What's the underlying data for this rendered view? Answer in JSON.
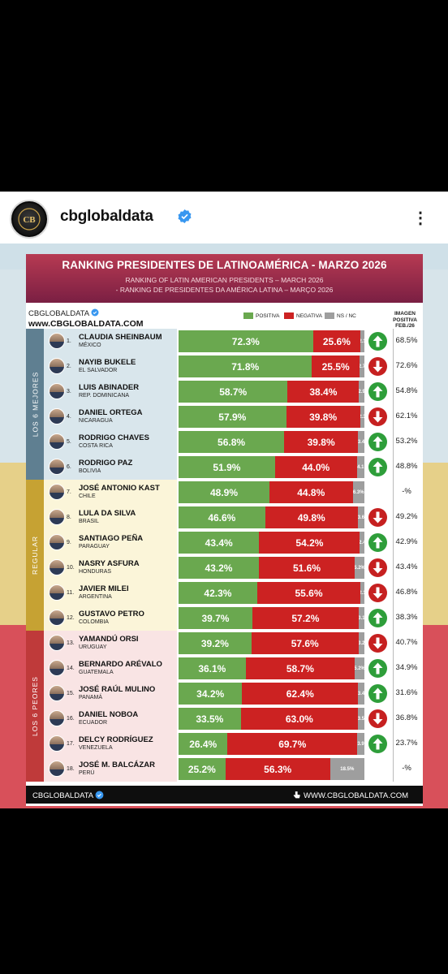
{
  "account": {
    "username": "cbglobaldata",
    "avatar_text": "CB GLOBAL DATA"
  },
  "card": {
    "title": "RANKING PRESIDENTES DE LATINOAMÉRICA - MARZO 2026",
    "subtitle_en": "RANKING OF LATIN AMERICAN PRESIDENTS – MARCH 2026",
    "subtitle_pt": "- RANKING DE PRESIDENTES DA AMÉRICA LATINA – MARÇO 2026",
    "brand": "CBGLOBALDATA",
    "brand_url": "www.CBGLOBALDATA.COM",
    "legend": {
      "positive": "POSITIVA",
      "negative": "NEGATIVA",
      "nsnc": "NS / NC"
    },
    "col_header": "IMAGEN POSITIVA FEB./26",
    "groups": {
      "top": "LOS 6 MEJORES",
      "mid": "REGULAR",
      "bottom": "LOS 6 PEORES"
    },
    "footer_left": "CBGLOBALDATA",
    "footer_right": "WWW.CBGLOBALDATA.COM"
  },
  "colors": {
    "positive": "#6aa84f",
    "negative": "#cc2222",
    "nsnc": "#9e9e9e",
    "up": "#2e9e3a",
    "down": "#c62020",
    "title_band": "#9b2a4a"
  },
  "rows": [
    {
      "rank": "1.",
      "name": "CLAUDIA SHEINBAUM",
      "country": "MÉXICO",
      "pos": 72.3,
      "neg": 25.6,
      "ns": 2.1,
      "pos_label": "72.3%",
      "neg_label": "25.6%",
      "ns_label": "2.1",
      "trend": "up",
      "feb": "68.5%"
    },
    {
      "rank": "2.",
      "name": "NAYIB BUKELE",
      "country": "EL SALVADOR",
      "pos": 71.8,
      "neg": 25.5,
      "ns": 2.7,
      "pos_label": "71.8%",
      "neg_label": "25.5%",
      "ns_label": "2.7",
      "trend": "down",
      "feb": "72.6%"
    },
    {
      "rank": "3.",
      "name": "LUIS ABINADER",
      "country": "REP. DOMINICANA",
      "pos": 58.7,
      "neg": 38.4,
      "ns": 2.9,
      "pos_label": "58.7%",
      "neg_label": "38.4%",
      "ns_label": "2.9",
      "trend": "up",
      "feb": "54.8%"
    },
    {
      "rank": "4.",
      "name": "DANIEL ORTEGA",
      "country": "NICARAGUA",
      "pos": 57.9,
      "neg": 39.8,
      "ns": 2.3,
      "pos_label": "57.9%",
      "neg_label": "39.8%",
      "ns_label": "2.3",
      "trend": "down",
      "feb": "62.1%"
    },
    {
      "rank": "5.",
      "name": "RODRIGO CHAVES",
      "country": "COSTA RICA",
      "pos": 56.8,
      "neg": 39.8,
      "ns": 3.4,
      "pos_label": "56.8%",
      "neg_label": "39.8%",
      "ns_label": "3.4",
      "trend": "up",
      "feb": "53.2%"
    },
    {
      "rank": "6.",
      "name": "RODRIGO PAZ",
      "country": "BOLIVIA",
      "pos": 51.9,
      "neg": 44.0,
      "ns": 4.1,
      "pos_label": "51.9%",
      "neg_label": "44.0%",
      "ns_label": "4.1",
      "trend": "up",
      "feb": "48.8%"
    },
    {
      "rank": "7.",
      "name": "JOSÉ ANTONIO KAST",
      "country": "CHILE",
      "pos": 48.9,
      "neg": 44.8,
      "ns": 6.3,
      "pos_label": "48.9%",
      "neg_label": "44.8%",
      "ns_label": "6.3%",
      "trend": "none",
      "feb": "-%"
    },
    {
      "rank": "8.",
      "name": "LULA DA SILVA",
      "country": "BRASIL",
      "pos": 46.6,
      "neg": 49.8,
      "ns": 3.6,
      "pos_label": "46.6%",
      "neg_label": "49.8%",
      "ns_label": "3.6",
      "trend": "down",
      "feb": "49.2%"
    },
    {
      "rank": "9.",
      "name": "SANTIAGO PEÑA",
      "country": "PARAGUAY",
      "pos": 43.4,
      "neg": 54.2,
      "ns": 2.4,
      "pos_label": "43.4%",
      "neg_label": "54.2%",
      "ns_label": "2.4",
      "trend": "up",
      "feb": "42.9%"
    },
    {
      "rank": "10.",
      "name": "NASRY ASFURA",
      "country": "HONDURAS",
      "pos": 43.2,
      "neg": 51.6,
      "ns": 5.2,
      "pos_label": "43.2%",
      "neg_label": "51.6%",
      "ns_label": "5.2%",
      "trend": "down",
      "feb": "43.4%"
    },
    {
      "rank": "11.",
      "name": "JAVIER MILEI",
      "country": "ARGENTINA",
      "pos": 42.3,
      "neg": 55.6,
      "ns": 2.1,
      "pos_label": "42.3%",
      "neg_label": "55.6%",
      "ns_label": "2.1",
      "trend": "down",
      "feb": "46.8%"
    },
    {
      "rank": "12.",
      "name": "GUSTAVO PETRO",
      "country": "COLOMBIA",
      "pos": 39.7,
      "neg": 57.2,
      "ns": 3.1,
      "pos_label": "39.7%",
      "neg_label": "57.2%",
      "ns_label": "3.1",
      "trend": "up",
      "feb": "38.3%"
    },
    {
      "rank": "13.",
      "name": "YAMANDÚ ORSI",
      "country": "URUGUAY",
      "pos": 39.2,
      "neg": 57.6,
      "ns": 3.2,
      "pos_label": "39.2%",
      "neg_label": "57.6%",
      "ns_label": "3.2",
      "trend": "down",
      "feb": "40.7%"
    },
    {
      "rank": "14.",
      "name": "BERNARDO ARÉVALO",
      "country": "GUATEMALA",
      "pos": 36.1,
      "neg": 58.7,
      "ns": 5.2,
      "pos_label": "36.1%",
      "neg_label": "58.7%",
      "ns_label": "5.2%",
      "trend": "up",
      "feb": "34.9%"
    },
    {
      "rank": "15.",
      "name": "JOSÉ RAÚL MULINO",
      "country": "PANAMÁ",
      "pos": 34.2,
      "neg": 62.4,
      "ns": 3.4,
      "pos_label": "34.2%",
      "neg_label": "62.4%",
      "ns_label": "3.4",
      "trend": "up",
      "feb": "31.6%"
    },
    {
      "rank": "16.",
      "name": "DANIEL NOBOA",
      "country": "ECUADOR",
      "pos": 33.5,
      "neg": 63.0,
      "ns": 3.5,
      "pos_label": "33.5%",
      "neg_label": "63.0%",
      "ns_label": "3.5",
      "trend": "down",
      "feb": "36.8%"
    },
    {
      "rank": "17.",
      "name": "DELCY RODRÍGUEZ",
      "country": "VENEZUELA",
      "pos": 26.4,
      "neg": 69.7,
      "ns": 3.9,
      "pos_label": "26.4%",
      "neg_label": "69.7%",
      "ns_label": "3.9",
      "trend": "up",
      "feb": "23.7%"
    },
    {
      "rank": "18.",
      "name": "JOSÉ M. BALCÁZAR",
      "country": "PERÚ",
      "pos": 25.2,
      "neg": 56.3,
      "ns": 18.5,
      "pos_label": "25.2%",
      "neg_label": "56.3%",
      "ns_label": "18.5%",
      "trend": "none",
      "feb": "-%"
    }
  ]
}
